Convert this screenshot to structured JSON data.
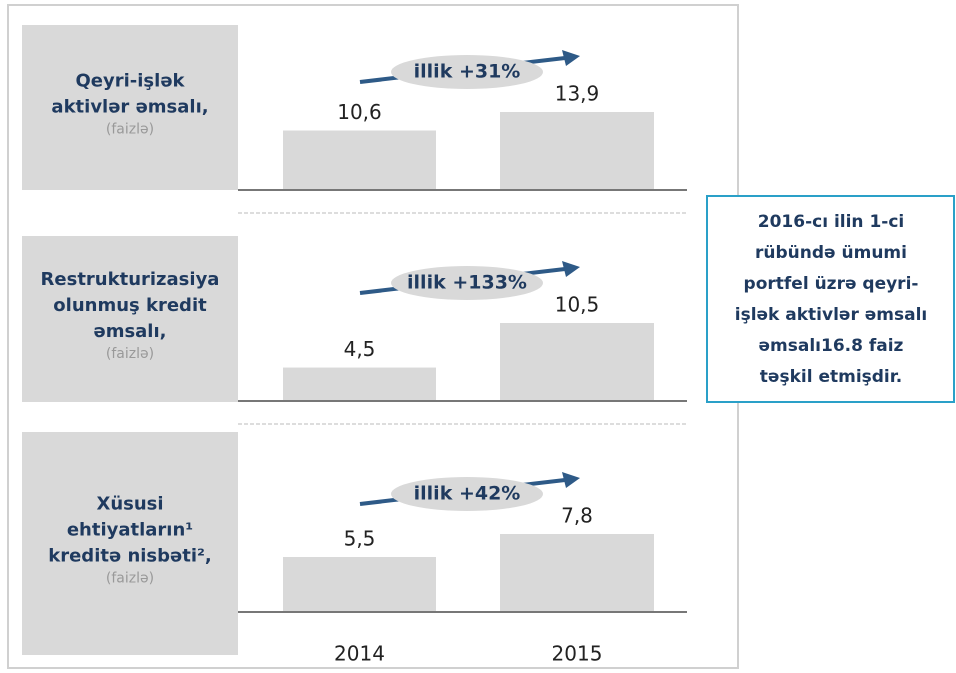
{
  "chart_data": [
    {
      "type": "bar",
      "title": [
        "Qeyri-işlək",
        "aktivlər əmsalı,"
      ],
      "subtitle": "(faizlə)",
      "values": [
        10.6,
        13.9
      ],
      "value_labels": [
        "10,6",
        "13,9"
      ],
      "color": "#d9d9d9",
      "annotation": "illik +31%"
    },
    {
      "type": "bar",
      "title": [
        "Restrukturizasiya",
        "olunmuş kredit",
        "əmsalı,"
      ],
      "subtitle": "(faizlə)",
      "values": [
        4.5,
        10.5
      ],
      "value_labels": [
        "4,5",
        "10,5"
      ],
      "color": "#d9d9d9",
      "annotation": "illik +133%"
    },
    {
      "type": "bar",
      "title": [
        "Xüsusi",
        "ehtiyatların¹",
        "kreditə nisbəti²,"
      ],
      "subtitle": "(faizlə)",
      "categories": [
        "2014",
        "2015"
      ],
      "values": [
        5.5,
        7.8
      ],
      "value_labels": [
        "5,5",
        "7,8"
      ],
      "color": "#d9d9d9",
      "annotation": "illik +42%"
    }
  ],
  "note": {
    "lines": [
      "2016-cı ilin 1-ci",
      "rübündə ümumi",
      "portfel üzrə qeyri-",
      "işlək aktivlər əmsalı",
      "əmsalı16.8 faiz",
      "təşkil etmişdir."
    ]
  }
}
